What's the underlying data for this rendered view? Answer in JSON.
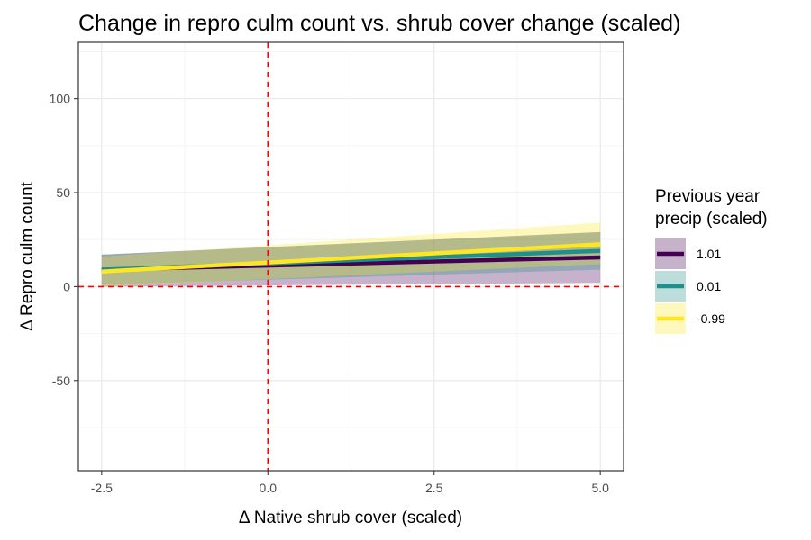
{
  "chart_data": {
    "type": "line",
    "title": "Change in repro culm count vs. shrub cover change (scaled)",
    "xlabel": "Δ Native shrub cover (scaled)",
    "ylabel": "Δ Repro culm count",
    "xlim": [
      -2.85,
      5.35
    ],
    "ylim": [
      -98,
      130
    ],
    "x_ticks": [
      -2.5,
      0.0,
      2.5,
      5.0
    ],
    "x_tick_labels": [
      "-2.5",
      "0.0",
      "2.5",
      "5.0"
    ],
    "y_ticks": [
      -50,
      0,
      50,
      100
    ],
    "y_tick_labels": [
      "-50",
      "0",
      "50",
      "100"
    ],
    "grid": true,
    "reference_lines": {
      "x": 0,
      "y": 0,
      "color": "#ff0000",
      "style": "dashed"
    },
    "legend": {
      "title_line1": "Previous year",
      "title_line2": "precip (scaled)",
      "position": "right"
    },
    "series": [
      {
        "name": "1.01",
        "color": "#440154",
        "fill": "#440154",
        "x": [
          -2.5,
          5.0
        ],
        "y": [
          9,
          15.5
        ],
        "lower": [
          0,
          2
        ],
        "upper": [
          17,
          29
        ]
      },
      {
        "name": "0.01",
        "color": "#21908C",
        "fill": "#21908C",
        "x": [
          -2.5,
          5.0
        ],
        "y": [
          9,
          19
        ],
        "lower": [
          1,
          9
        ],
        "upper": [
          17,
          29
        ]
      },
      {
        "name": "-0.99",
        "color": "#FDE725",
        "fill": "#FDE725",
        "x": [
          -2.5,
          5.0
        ],
        "y": [
          8,
          22.5
        ],
        "lower": [
          0,
          12
        ],
        "upper": [
          16,
          34
        ]
      }
    ]
  }
}
